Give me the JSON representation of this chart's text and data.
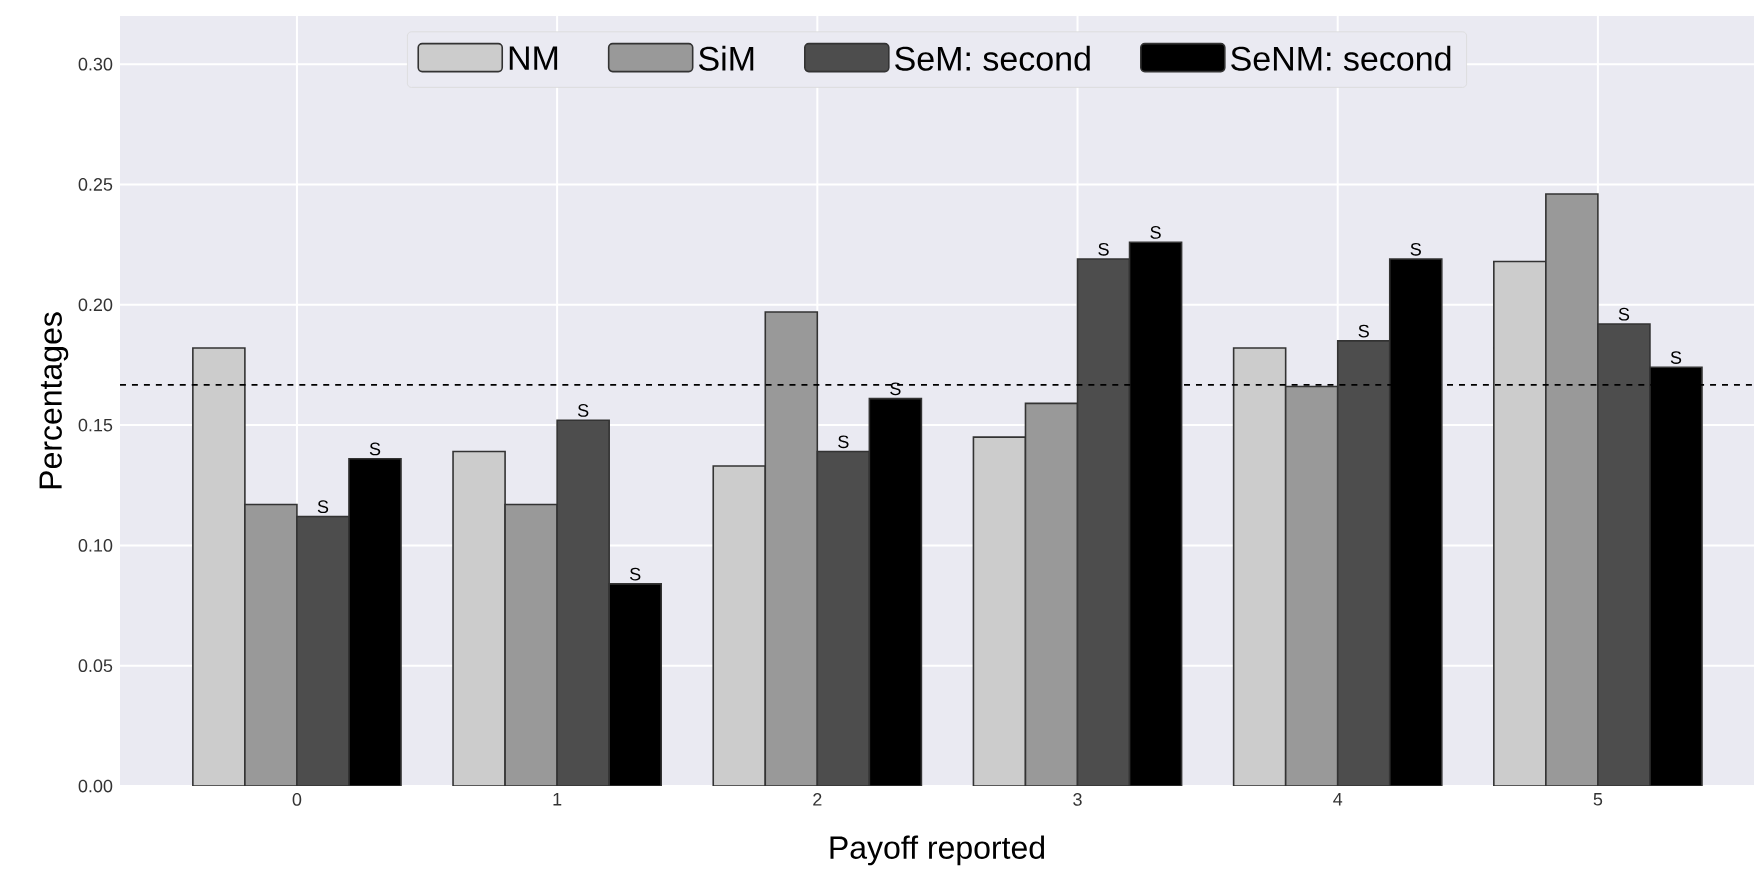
{
  "chart_data": {
    "type": "bar",
    "xlabel": "Payoff reported",
    "ylabel": "Percentages",
    "categories": [
      "0",
      "1",
      "2",
      "3",
      "4",
      "5"
    ],
    "series": [
      {
        "name": "NM",
        "color": "#cccccc",
        "values": [
          0.182,
          0.139,
          0.133,
          0.145,
          0.182,
          0.218
        ]
      },
      {
        "name": "SiM",
        "color": "#999999",
        "values": [
          0.117,
          0.117,
          0.197,
          0.159,
          0.166,
          0.246
        ]
      },
      {
        "name": "SeM: second",
        "color": "#4d4d4d",
        "values": [
          0.112,
          0.152,
          0.139,
          0.219,
          0.185,
          0.192
        ],
        "value_labels": [
          "S",
          "S",
          "S",
          "S",
          "S",
          "S"
        ]
      },
      {
        "name": "SeNM: second",
        "color": "#000000",
        "values": [
          0.136,
          0.084,
          0.161,
          0.226,
          0.219,
          0.174
        ],
        "value_labels": [
          "S",
          "S",
          "S",
          "S",
          "S",
          "S"
        ]
      }
    ],
    "ylim": [
      0,
      0.32
    ],
    "yticks": [
      {
        "value": 0,
        "label": "0.00"
      },
      {
        "value": 0.05,
        "label": "0.05"
      },
      {
        "value": 0.1,
        "label": "0.10"
      },
      {
        "value": 0.15,
        "label": "0.15"
      },
      {
        "value": 0.2,
        "label": "0.20"
      },
      {
        "value": 0.25,
        "label": "0.25"
      },
      {
        "value": 0.3,
        "label": "0.30"
      }
    ],
    "ref_lines": [
      {
        "axis": "y",
        "value": 0.1667,
        "color": "#000000",
        "line_style": "dashed"
      }
    ],
    "grid": true,
    "legend": "top"
  }
}
